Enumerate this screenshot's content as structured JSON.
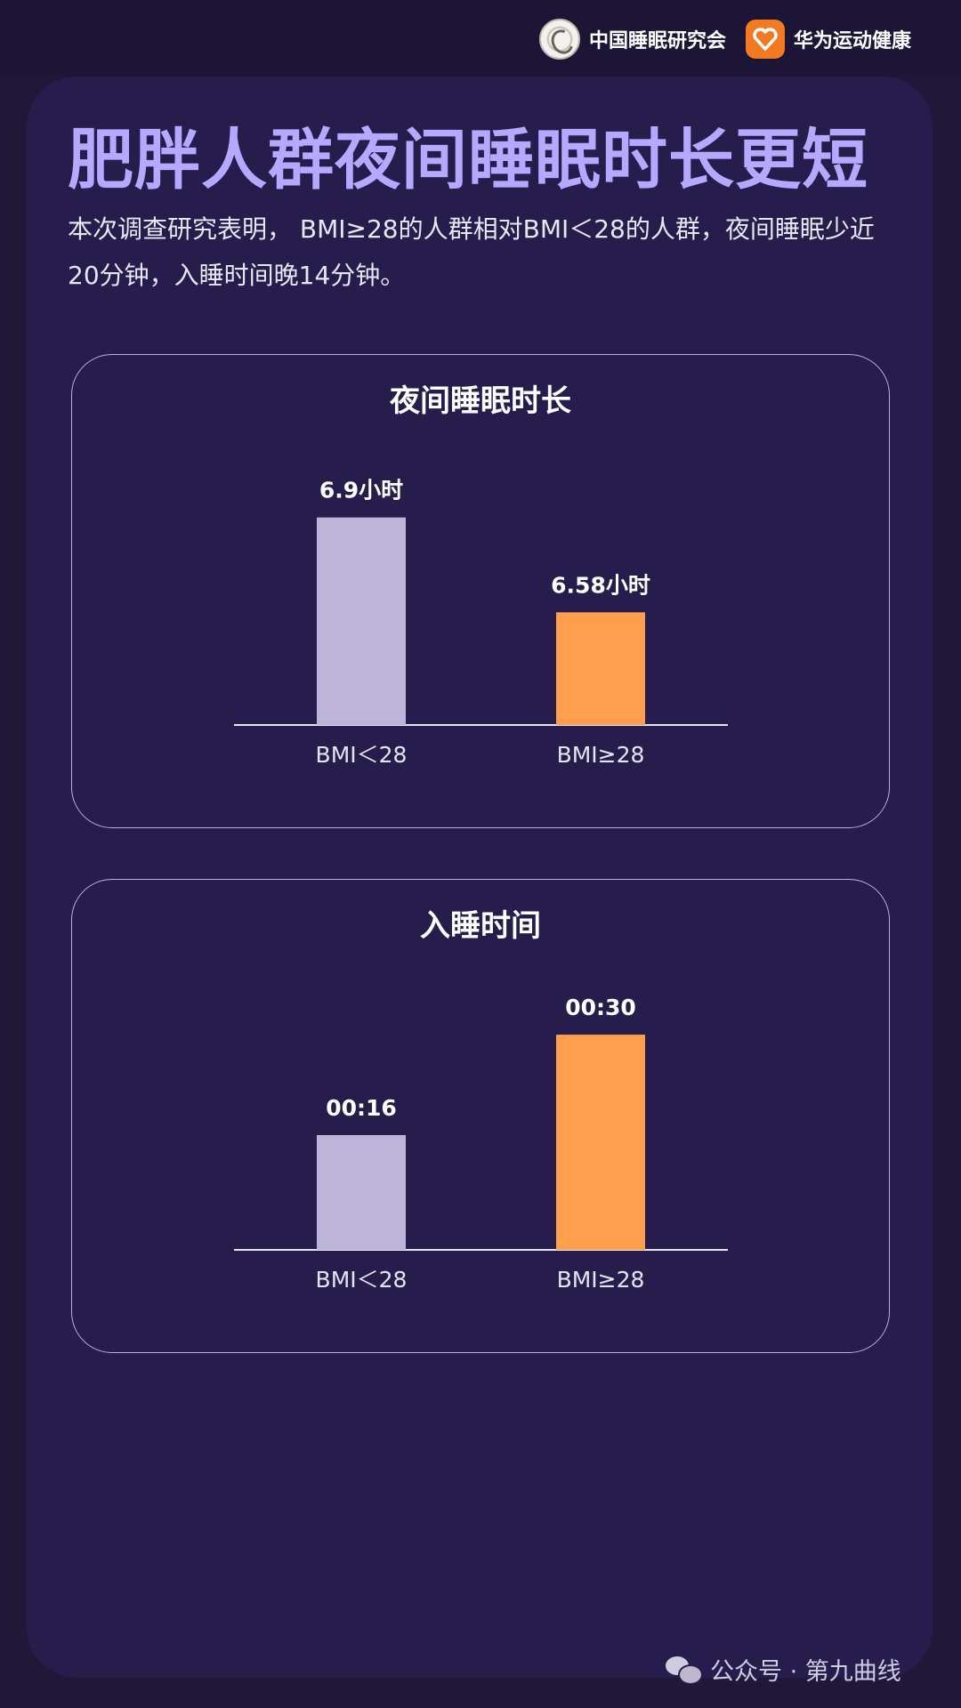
{
  "brands": {
    "sleep_society": "中国睡眠研究会",
    "huawei_health": "华为运动健康"
  },
  "headline": "肥胖人群夜间睡眠时长更短",
  "description": "本次调查研究表明， BMI≥28的人群相对BMI＜28的人群，夜间睡眠少近20分钟，入睡时间晚14分钟。",
  "footer": "公众号 · 第九曲线",
  "colors": {
    "series_low_bmi": "#bcb5d9",
    "series_high_bmi": "#ff9f4d",
    "headline": "#b7a8ff",
    "background": "#271d4d"
  },
  "chart_data": [
    {
      "type": "bar",
      "title": "夜间睡眠时长",
      "categories": [
        "BMI＜28",
        "BMI≥28"
      ],
      "values": [
        6.9,
        6.58
      ],
      "value_labels": [
        "6.9小时",
        "6.58小时"
      ],
      "unit": "小时",
      "ylim": [
        6.2,
        6.95
      ],
      "xlabel": "",
      "ylabel": "",
      "grid": false
    },
    {
      "type": "bar",
      "title": "入睡时间",
      "categories": [
        "BMI＜28",
        "BMI≥28"
      ],
      "values": [
        16,
        30
      ],
      "value_labels": [
        "00:16",
        "00:30"
      ],
      "unit": "minutes after midnight",
      "ylim": [
        0,
        31
      ],
      "xlabel": "",
      "ylabel": "",
      "grid": false
    }
  ]
}
